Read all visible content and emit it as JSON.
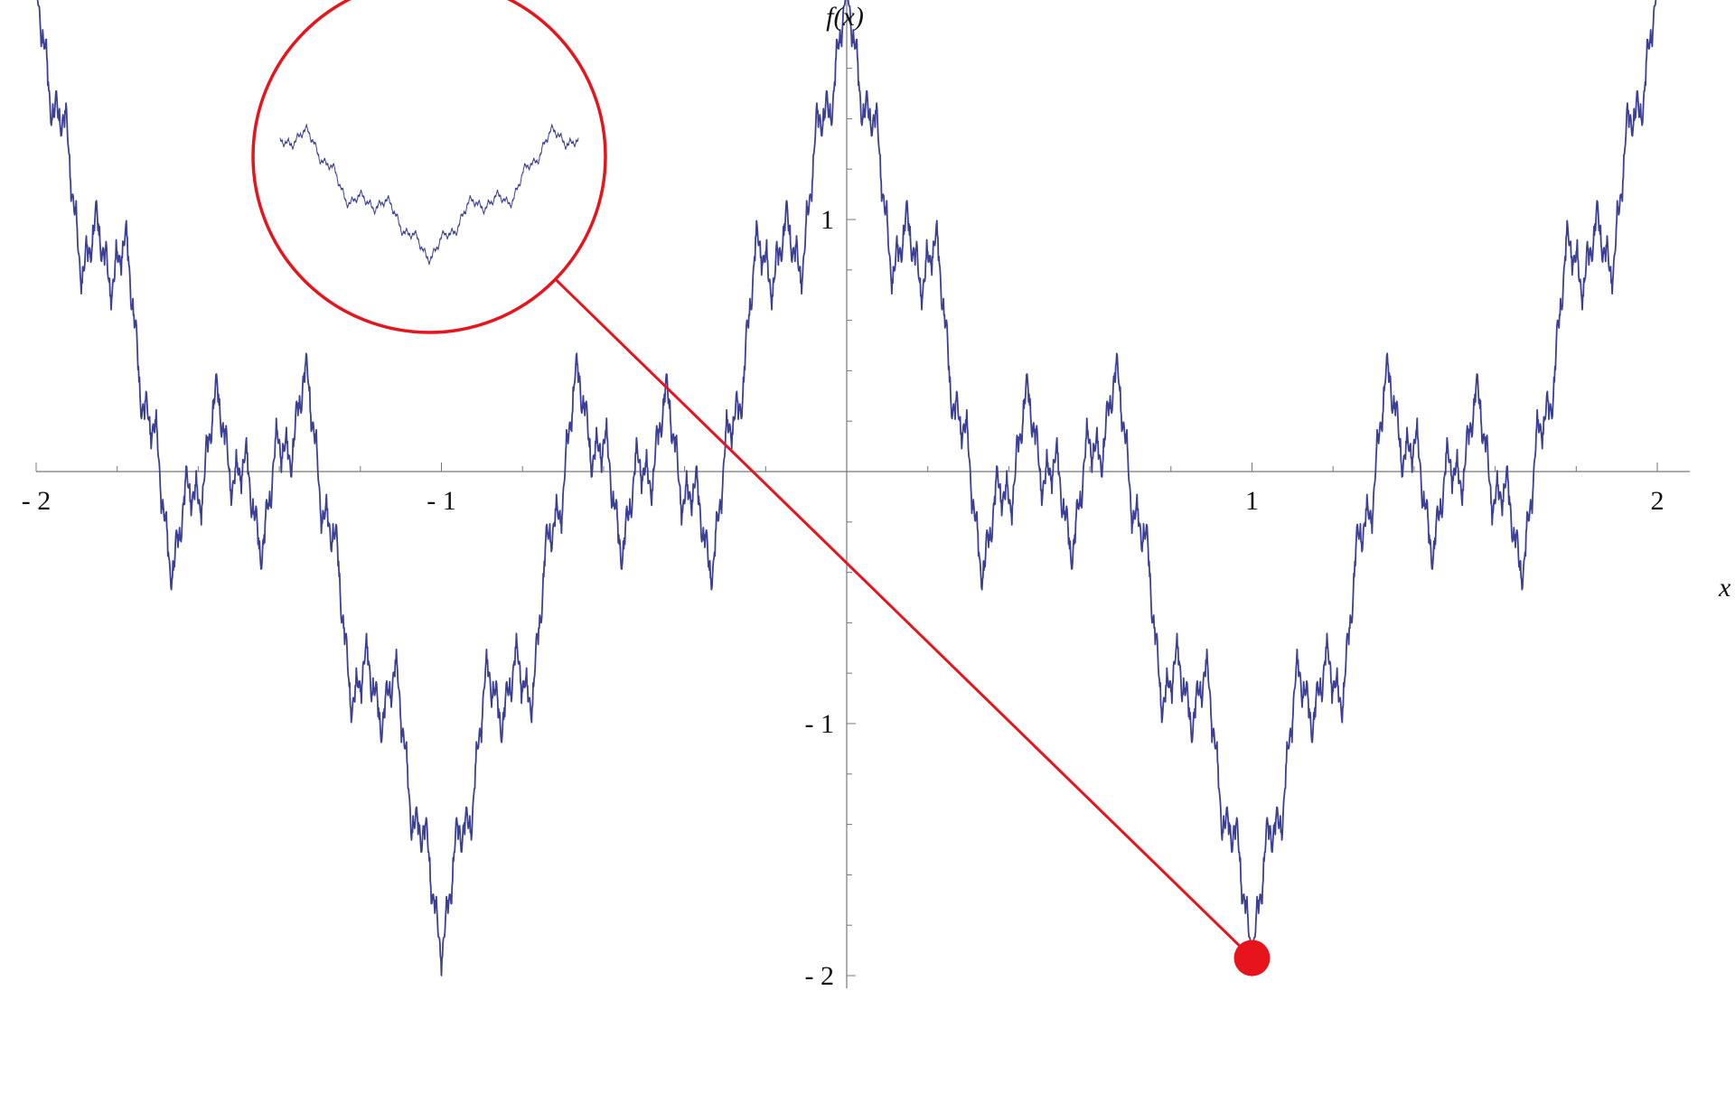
{
  "chart_data": {
    "type": "line",
    "title": "",
    "xlabel": "x",
    "ylabel": "f(x)",
    "xlim": [
      -2,
      2.08
    ],
    "ylim": [
      -2.05,
      2.05
    ],
    "x_ticks": [
      -2,
      -1,
      1,
      2
    ],
    "x_tick_labels": [
      "- 2",
      "- 1",
      "1",
      "2"
    ],
    "y_ticks": [
      -2,
      -1,
      1,
      2
    ],
    "y_tick_labels": [
      "- 2",
      "- 1",
      "1",
      "2"
    ],
    "x_minor_step": 0.2,
    "y_minor_step": 0.2,
    "grid": false,
    "legend": "none",
    "series": [
      {
        "function": "fractal Weierstrass-type curve, f(x) = sum_k a^k cos(b^k * pi * x), a = 0.5, b = 3",
        "x_start": -2,
        "x_end": 2,
        "samples": 3200,
        "color": "#3b3f96",
        "values": [
          [
            -2.0,
            2.0
          ],
          [
            -1.75,
            0.1
          ],
          [
            -1.67,
            -0.45
          ],
          [
            -1.5,
            0.2
          ],
          [
            -1.33,
            0.45
          ],
          [
            -1.0,
            -2.0
          ],
          [
            -0.67,
            0.45
          ],
          [
            -0.5,
            0.2
          ],
          [
            -0.33,
            -0.45
          ],
          [
            -0.25,
            0.1
          ],
          [
            0.0,
            2.0
          ],
          [
            0.25,
            0.1
          ],
          [
            0.33,
            -0.45
          ],
          [
            0.5,
            0.2
          ],
          [
            0.67,
            0.45
          ],
          [
            1.0,
            -2.0
          ],
          [
            1.33,
            0.45
          ],
          [
            1.5,
            0.2
          ],
          [
            1.67,
            -0.45
          ],
          [
            1.75,
            0.1
          ],
          [
            2.0,
            2.0
          ]
        ]
      }
    ],
    "annotations": [
      {
        "type": "zoom-circle",
        "point": [
          1.0,
          -1.93
        ],
        "inset_x_range": [
          0.955,
          1.045
        ],
        "color": "#e8141c"
      }
    ]
  }
}
